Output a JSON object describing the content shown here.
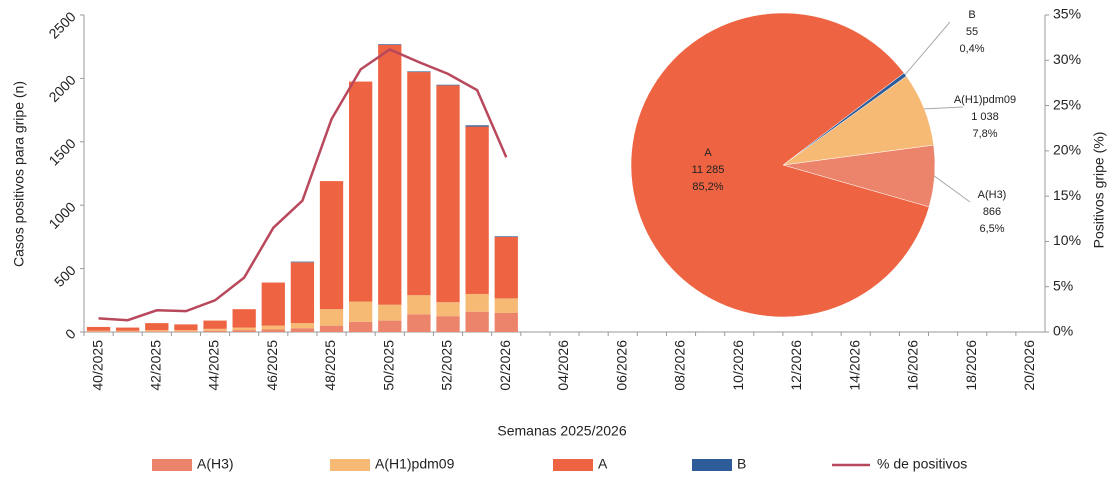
{
  "chart_data": [
    {
      "type": "bar",
      "x_label": "Semanas 2025/2026",
      "y_label": "Casos positivos para gripe (n)",
      "y2_label": "Positivos gripe (%)",
      "stacked": true,
      "categories": [
        "40/2025",
        null,
        "42/2025",
        null,
        "44/2025",
        null,
        "46/2025",
        null,
        "48/2025",
        null,
        "50/2025",
        null,
        "52/2025",
        null,
        "02/2026",
        null,
        "04/2026",
        null,
        "06/2026",
        null,
        "08/2026",
        null,
        "10/2026",
        null,
        "12/2026",
        null,
        "14/2026",
        null,
        "16/2026",
        null,
        "18/2026",
        null,
        "20/2026"
      ],
      "series": [
        {
          "name": "A(H3)",
          "color": "#ec836b",
          "values": [
            5,
            5,
            5,
            5,
            10,
            15,
            20,
            30,
            50,
            80,
            90,
            140,
            125,
            160,
            150,
            null,
            null,
            null,
            null,
            null,
            null,
            null,
            null,
            null,
            null,
            null,
            null,
            null,
            null,
            null,
            null,
            null,
            null
          ]
        },
        {
          "name": "A(H1)pdm09",
          "color": "#f6ba75",
          "values": [
            5,
            5,
            10,
            10,
            15,
            20,
            30,
            40,
            130,
            160,
            125,
            150,
            110,
            140,
            115,
            null,
            null,
            null,
            null,
            null,
            null,
            null,
            null,
            null,
            null,
            null,
            null,
            null,
            null,
            null,
            null,
            null,
            null
          ]
        },
        {
          "name": "A",
          "color": "#ee6443",
          "values": [
            30,
            25,
            55,
            45,
            65,
            145,
            340,
            480,
            1010,
            1735,
            2050,
            1760,
            1710,
            1320,
            485,
            null,
            null,
            null,
            null,
            null,
            null,
            null,
            null,
            null,
            null,
            null,
            null,
            null,
            null,
            null,
            null,
            null,
            null
          ]
        },
        {
          "name": "B",
          "color": "#2e5c99",
          "values": [
            0,
            0,
            0,
            0,
            0,
            0,
            0,
            5,
            0,
            0,
            5,
            5,
            5,
            10,
            5,
            null,
            null,
            null,
            null,
            null,
            null,
            null,
            null,
            null,
            null,
            null,
            null,
            null,
            null,
            null,
            null,
            null,
            null
          ]
        },
        {
          "name": "% de positivos",
          "type": "line",
          "axis": "y2",
          "color": "#b9485c",
          "values": [
            1.5,
            1.3,
            2.4,
            2.3,
            3.5,
            6.0,
            11.5,
            14.5,
            23.5,
            29.0,
            31.2,
            29.8,
            28.5,
            26.7,
            19.3,
            null,
            null,
            null,
            null,
            null,
            null,
            null,
            null,
            null,
            null,
            null,
            null,
            null,
            null,
            null,
            null,
            null,
            null
          ]
        }
      ],
      "ylim": [
        0,
        2500
      ],
      "yticks": [
        0,
        500,
        1000,
        1500,
        2000,
        2500
      ],
      "y2lim": [
        0,
        35
      ],
      "y2ticks": [
        {
          "value": 0,
          "label": "0%"
        },
        {
          "value": 5,
          "label": "5%"
        },
        {
          "value": 10,
          "label": "10%"
        },
        {
          "value": 15,
          "label": "15%"
        },
        {
          "value": 20,
          "label": "20%"
        },
        {
          "value": 25,
          "label": "25%"
        },
        {
          "value": 30,
          "label": "30%"
        },
        {
          "value": 35,
          "label": "35%"
        }
      ],
      "legend": "bottom"
    },
    {
      "type": "pie",
      "categories": [
        "A(H3)",
        "A(H1)pdm09",
        "B",
        "A"
      ],
      "colors": [
        "#ec836b",
        "#f6ba75",
        "#2e5c99",
        "#ee6443"
      ],
      "values": [
        866,
        1038,
        55,
        11285
      ],
      "value_labels": [
        "866",
        "1 038",
        "55",
        "11 285"
      ],
      "shares": [
        6.5,
        7.8,
        0.4,
        85.2
      ],
      "share_labels": [
        "6,5%",
        "7,8%",
        "0,4%",
        "85,2%"
      ]
    }
  ]
}
